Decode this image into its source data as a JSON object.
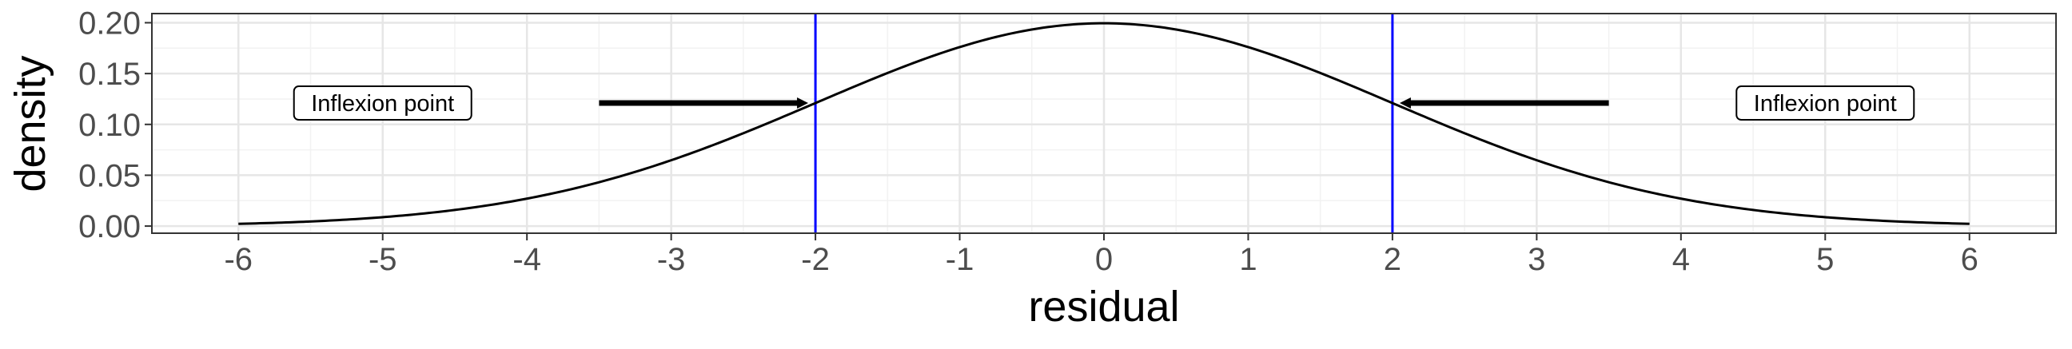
{
  "chart_data": {
    "type": "line",
    "title": "",
    "xlabel": "residual",
    "ylabel": "density",
    "xlim": [
      -6.6,
      6.6
    ],
    "ylim": [
      -0.007,
      0.209
    ],
    "x_ticks": [
      -6,
      -5,
      -4,
      -3,
      -2,
      -1,
      0,
      1,
      2,
      3,
      4,
      5,
      6
    ],
    "x_tick_labels": [
      "-6",
      "-5",
      "-4",
      "-3",
      "-2",
      "-1",
      "0",
      "1",
      "2",
      "3",
      "4",
      "5",
      "6"
    ],
    "y_ticks": [
      0,
      0.05,
      0.1,
      0.15,
      0.2
    ],
    "y_tick_labels": [
      "0.00",
      "0.05",
      "0.10",
      "0.15",
      "0.20"
    ],
    "grid": true,
    "series": [
      {
        "distribution": "normal",
        "mean": 0,
        "sd": 2,
        "x_range": [
          -6,
          6
        ],
        "color": "#000000"
      }
    ],
    "vertical_lines": [
      {
        "x": -2,
        "color": "#0000ff"
      },
      {
        "x": 2,
        "color": "#0000ff"
      }
    ],
    "arrows": [
      {
        "from": [
          -3.5,
          0.121
        ],
        "to": [
          -2.05,
          0.121
        ]
      },
      {
        "from": [
          3.5,
          0.121
        ],
        "to": [
          2.05,
          0.121
        ]
      }
    ],
    "annotations": [
      {
        "text": "Inflexion point",
        "x": -5,
        "y": 0.121
      },
      {
        "text": "Inflexion point",
        "x": 5,
        "y": 0.121
      }
    ]
  }
}
